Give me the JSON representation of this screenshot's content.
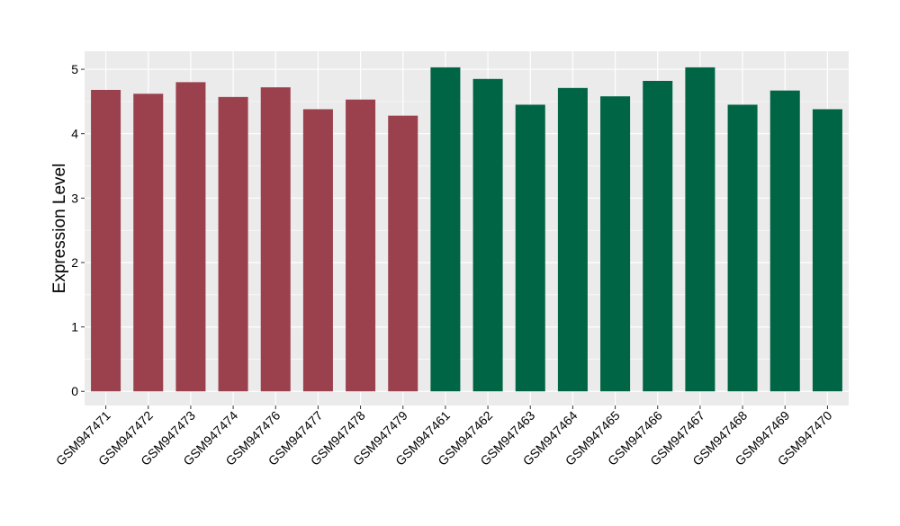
{
  "chart_data": {
    "type": "bar",
    "title": "",
    "xlabel": "",
    "ylabel": "Expression Level",
    "ylim": [
      -0.22,
      5.28
    ],
    "yticks": [
      0,
      1,
      2,
      3,
      4,
      5
    ],
    "grid": true,
    "categories": [
      "GSM947471",
      "GSM947472",
      "GSM947473",
      "GSM947474",
      "GSM947476",
      "GSM947477",
      "GSM947478",
      "GSM947479",
      "GSM947461",
      "GSM947462",
      "GSM947463",
      "GSM947464",
      "GSM947465",
      "GSM947466",
      "GSM947467",
      "GSM947468",
      "GSM947469",
      "GSM947470"
    ],
    "values": [
      4.68,
      4.62,
      4.8,
      4.57,
      4.72,
      4.38,
      4.53,
      4.28,
      5.03,
      4.85,
      4.45,
      4.71,
      4.58,
      4.82,
      5.03,
      4.45,
      4.67,
      4.38
    ],
    "groups": [
      "a",
      "a",
      "a",
      "a",
      "a",
      "a",
      "a",
      "a",
      "b",
      "b",
      "b",
      "b",
      "b",
      "b",
      "b",
      "b",
      "b",
      "b"
    ],
    "group_colors": {
      "a": "#9b414e",
      "b": "#006544"
    },
    "panel_color": "#ebebeb",
    "grid_color": "#ffffff"
  }
}
